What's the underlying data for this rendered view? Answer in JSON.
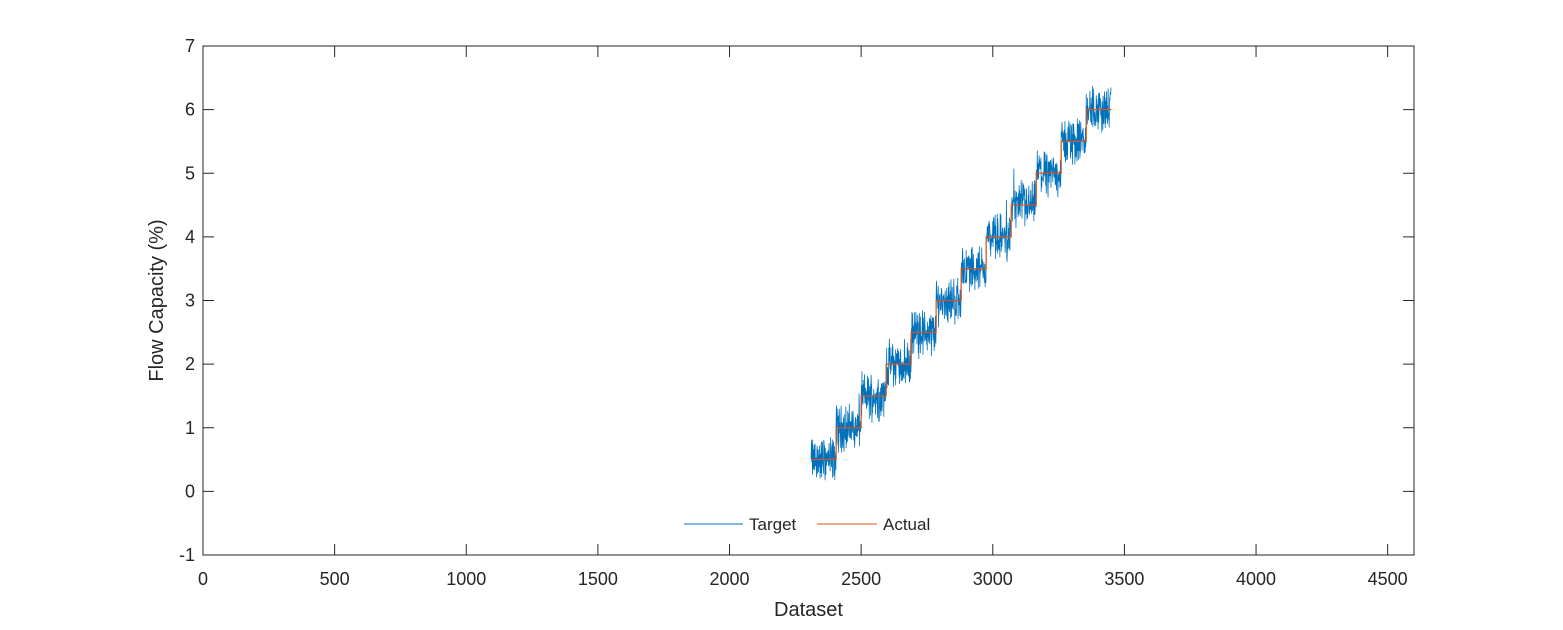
{
  "chart_data": {
    "type": "line",
    "title": "",
    "xlabel": "Dataset",
    "ylabel": "Flow Capacity (%)",
    "xlim": [
      0,
      4600
    ],
    "ylim": [
      -1,
      7
    ],
    "xticks": [
      0,
      500,
      1000,
      1500,
      2000,
      2500,
      3000,
      3500,
      4000,
      4500
    ],
    "yticks": [
      -1,
      0,
      1,
      2,
      3,
      4,
      5,
      6,
      7
    ],
    "grid": false,
    "legend": {
      "placement": "bottom-center",
      "orientation": "horizontal"
    },
    "colors": {
      "Target": "#0072BD",
      "Actual": "#D95319"
    },
    "series": [
      {
        "name": "Target",
        "color": "#0072BD",
        "noise": "high-frequency noise around each step level, amplitude about ±0.4",
        "segments": [
          {
            "x_start": 2310,
            "x_end": 2405,
            "level": 0.5
          },
          {
            "x_start": 2405,
            "x_end": 2500,
            "level": 1.0
          },
          {
            "x_start": 2500,
            "x_end": 2595,
            "level": 1.5
          },
          {
            "x_start": 2595,
            "x_end": 2690,
            "level": 2.0
          },
          {
            "x_start": 2690,
            "x_end": 2785,
            "level": 2.5
          },
          {
            "x_start": 2785,
            "x_end": 2880,
            "level": 3.0
          },
          {
            "x_start": 2880,
            "x_end": 2975,
            "level": 3.5
          },
          {
            "x_start": 2975,
            "x_end": 3070,
            "level": 4.0
          },
          {
            "x_start": 3070,
            "x_end": 3165,
            "level": 4.5
          },
          {
            "x_start": 3165,
            "x_end": 3260,
            "level": 5.0
          },
          {
            "x_start": 3260,
            "x_end": 3355,
            "level": 5.5
          },
          {
            "x_start": 3355,
            "x_end": 3450,
            "level": 6.0
          }
        ]
      },
      {
        "name": "Actual",
        "color": "#D95319",
        "segments": [
          {
            "x_start": 2310,
            "x_end": 2405,
            "level": 0.5
          },
          {
            "x_start": 2405,
            "x_end": 2500,
            "level": 1.0
          },
          {
            "x_start": 2500,
            "x_end": 2595,
            "level": 1.5
          },
          {
            "x_start": 2595,
            "x_end": 2690,
            "level": 2.0
          },
          {
            "x_start": 2690,
            "x_end": 2785,
            "level": 2.5
          },
          {
            "x_start": 2785,
            "x_end": 2880,
            "level": 3.0
          },
          {
            "x_start": 2880,
            "x_end": 2975,
            "level": 3.5
          },
          {
            "x_start": 2975,
            "x_end": 3070,
            "level": 4.0
          },
          {
            "x_start": 3070,
            "x_end": 3165,
            "level": 4.5
          },
          {
            "x_start": 3165,
            "x_end": 3260,
            "level": 5.0
          },
          {
            "x_start": 3260,
            "x_end": 3355,
            "level": 5.5
          },
          {
            "x_start": 3355,
            "x_end": 3450,
            "level": 6.0
          }
        ]
      }
    ]
  }
}
